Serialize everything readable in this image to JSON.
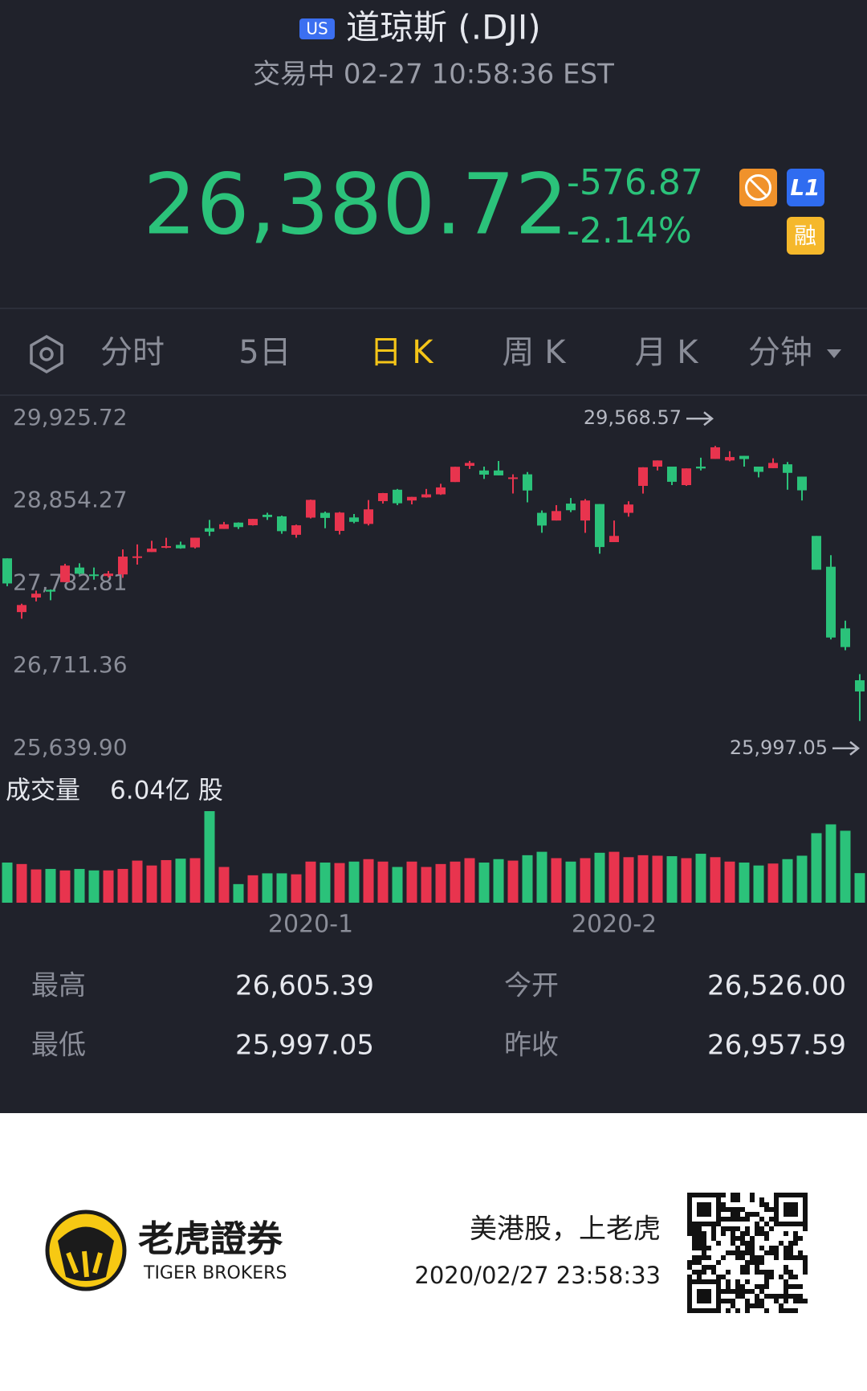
{
  "header": {
    "badge": "US",
    "title": "道琼斯 (.DJI)",
    "status": "交易中 02-27 10:58:36 EST"
  },
  "quote": {
    "price": "26,380.72",
    "change": "-576.87",
    "change_pct": "-2.14%",
    "badges": [
      "L1",
      "融"
    ]
  },
  "tabs": {
    "items": [
      "分时",
      "5日",
      "日 K",
      "周 K",
      "月 K",
      "分钟"
    ],
    "active": 2
  },
  "chart_data": {
    "type": "candlestick",
    "categories": [
      null,
      null,
      null,
      null,
      null,
      null,
      null,
      null,
      null,
      null,
      null,
      null,
      null,
      null,
      null,
      null,
      null,
      null,
      null,
      null,
      null,
      "2020-1",
      null,
      null,
      null,
      null,
      null,
      null,
      null,
      null,
      null,
      null,
      null,
      null,
      null,
      null,
      null,
      null,
      null,
      null,
      null,
      null,
      "2020-2",
      null,
      null,
      null,
      null,
      null,
      null,
      null,
      null,
      null,
      null,
      null,
      null,
      null,
      null,
      null,
      null,
      null
    ],
    "open": [
      28109,
      27411,
      27600,
      27700,
      27800,
      27990,
      27900,
      27880,
      27900,
      28124,
      28191,
      28266,
      28284,
      28251,
      28500,
      28491,
      28573,
      28539,
      28675,
      28654,
      28415,
      28638,
      28700,
      28466,
      28640,
      28556,
      28852,
      29000,
      28860,
      28900,
      28940,
      29100,
      29310,
      29250,
      29250,
      29150,
      29200,
      28700,
      28600,
      28820,
      28600,
      28814,
      28320,
      28700,
      29050,
      29300,
      29300,
      29060,
      29300,
      29400,
      29380,
      29440,
      29300,
      29280,
      29330,
      29170,
      28400,
      28000,
      27200,
      26526
    ],
    "high": [
      28109,
      27520,
      27690,
      27706,
      28038,
      28045,
      27990,
      27945,
      28225,
      28290,
      28337,
      28376,
      28326,
      28377,
      28608,
      28582,
      28576,
      28621,
      28701,
      28664,
      28547,
      28872,
      28716,
      28711,
      28685,
      28866,
      28958,
      29010,
      28908,
      29010,
      29077,
      29298,
      29374,
      29300,
      29373,
      29200,
      29230,
      28731,
      28800,
      28892,
      28879,
      28814,
      28600,
      28850,
      29292,
      29380,
      29300,
      29277,
      29416,
      29568.57,
      29500,
      29440,
      29300,
      29408,
      29360,
      29170,
      28400,
      28150,
      27300,
      26605.39
    ],
    "low": [
      27747,
      27325,
      27550,
      27565,
      27800,
      27900,
      27832,
      27860,
      27856,
      28028,
      28191,
      28240,
      28234,
      28237,
      28400,
      28491,
      28490,
      28535,
      28608,
      28428,
      28377,
      28627,
      28500,
      28419,
      28565,
      28536,
      28820,
      28800,
      28810,
      28897,
      28933,
      29100,
      29270,
      29140,
      29186,
      28951,
      28836,
      28441,
      28600,
      28709,
      28440,
      28169,
      28320,
      28650,
      28950,
      29250,
      29060,
      29050,
      29250,
      29400,
      29369,
      29300,
      29160,
      29280,
      29000,
      28860,
      27960,
      27056,
      26916,
      25997.05
    ],
    "close": [
      27783,
      27503,
      27650,
      27677,
      28015,
      27909,
      27881,
      27911,
      28132,
      28135,
      28235,
      28267,
      28239,
      28377,
      28455,
      28551,
      28515,
      28621,
      28645,
      28462,
      28538,
      28868,
      28634,
      28703,
      28583,
      28745,
      28956,
      28824,
      28907,
      28940,
      29030,
      29298,
      29348,
      29196,
      29186,
      29160,
      28990,
      28535,
      28723,
      28734,
      28860,
      28256,
      28400,
      28808,
      29291,
      29380,
      29103,
      29277,
      29276,
      29551,
      29424,
      29398,
      29232,
      29348,
      29219,
      28992,
      27961,
      27081,
      26957,
      26380.72
    ],
    "ylim": [
      25639.9,
      29925.72
    ],
    "yticks": [
      {
        "value": 29925.72,
        "label": "29,925.72"
      },
      {
        "value": 28854.27,
        "label": "28,854.27"
      },
      {
        "value": 27782.81,
        "label": "27,782.81"
      },
      {
        "value": 26711.36,
        "label": "26,711.36"
      },
      {
        "value": 25639.9,
        "label": "25,639.90"
      }
    ],
    "annotations": [
      {
        "value": 29568.57,
        "label": "29,568.57"
      },
      {
        "value": 25997.05,
        "label": "25,997.05"
      }
    ],
    "up_color": "#e8344e",
    "down_color": "#2bc27a",
    "volume": {
      "label": "成交量",
      "value_label": "6.04亿 股",
      "values": [
        8.2,
        7.9,
        6.8,
        6.9,
        6.6,
        6.9,
        6.6,
        6.6,
        6.9,
        8.6,
        7.6,
        8.7,
        9.0,
        9.1,
        18.7,
        7.3,
        3.8,
        5.6,
        6.0,
        6.0,
        5.8,
        8.4,
        8.2,
        8.1,
        8.4,
        8.9,
        8.4,
        7.3,
        8.4,
        7.3,
        7.9,
        8.4,
        9.1,
        8.2,
        8.9,
        8.6,
        9.7,
        10.4,
        9.1,
        8.4,
        9.1,
        10.2,
        10.4,
        9.3,
        9.7,
        9.6,
        9.5,
        9.1,
        10.0,
        9.3,
        8.4,
        8.2,
        7.6,
        8.0,
        8.9,
        9.6,
        14.2,
        16.0,
        14.7,
        6.04
      ]
    }
  },
  "stats": [
    {
      "label": "最高",
      "value": "26,605.39"
    },
    {
      "label": "今开",
      "value": "26,526.00"
    },
    {
      "label": "最低",
      "value": "25,997.05"
    },
    {
      "label": "昨收",
      "value": "26,957.59"
    }
  ],
  "footer": {
    "brand": "老虎證券",
    "brand_en": "TIGER BROKERS",
    "slogan": "美港股，上老虎",
    "timestamp": "2020/02/27 23:58:33"
  }
}
